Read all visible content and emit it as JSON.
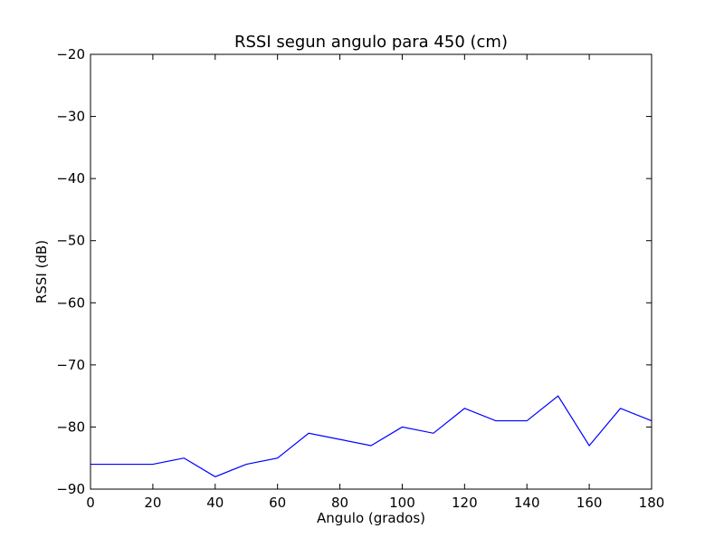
{
  "chart_data": {
    "type": "line",
    "title": "RSSI segun angulo para 450 (cm)",
    "xlabel": "Angulo (grados)",
    "ylabel": "RSSI (dB)",
    "xlim": [
      0,
      180
    ],
    "ylim": [
      -90,
      -20
    ],
    "xticks": [
      0,
      20,
      40,
      60,
      80,
      100,
      120,
      140,
      160,
      180
    ],
    "xtick_labels": [
      "0",
      "20",
      "40",
      "60",
      "80",
      "100",
      "120",
      "140",
      "160",
      "180"
    ],
    "yticks": [
      -90,
      -80,
      -70,
      -60,
      -50,
      -40,
      -30,
      -20
    ],
    "ytick_labels": [
      "−90",
      "−80",
      "−70",
      "−60",
      "−50",
      "−40",
      "−30",
      "−20"
    ],
    "grid": false,
    "series": [
      {
        "color": "#0000ff",
        "x": [
          0,
          10,
          20,
          30,
          40,
          50,
          60,
          70,
          80,
          90,
          100,
          110,
          120,
          130,
          140,
          150,
          160,
          170,
          180
        ],
        "y": [
          -86,
          -86,
          -86,
          -85,
          -88,
          -86,
          -85,
          -81,
          -82,
          -83,
          -80,
          -81,
          -77,
          -79,
          -79,
          -75,
          -83,
          -77,
          -79
        ]
      }
    ]
  }
}
